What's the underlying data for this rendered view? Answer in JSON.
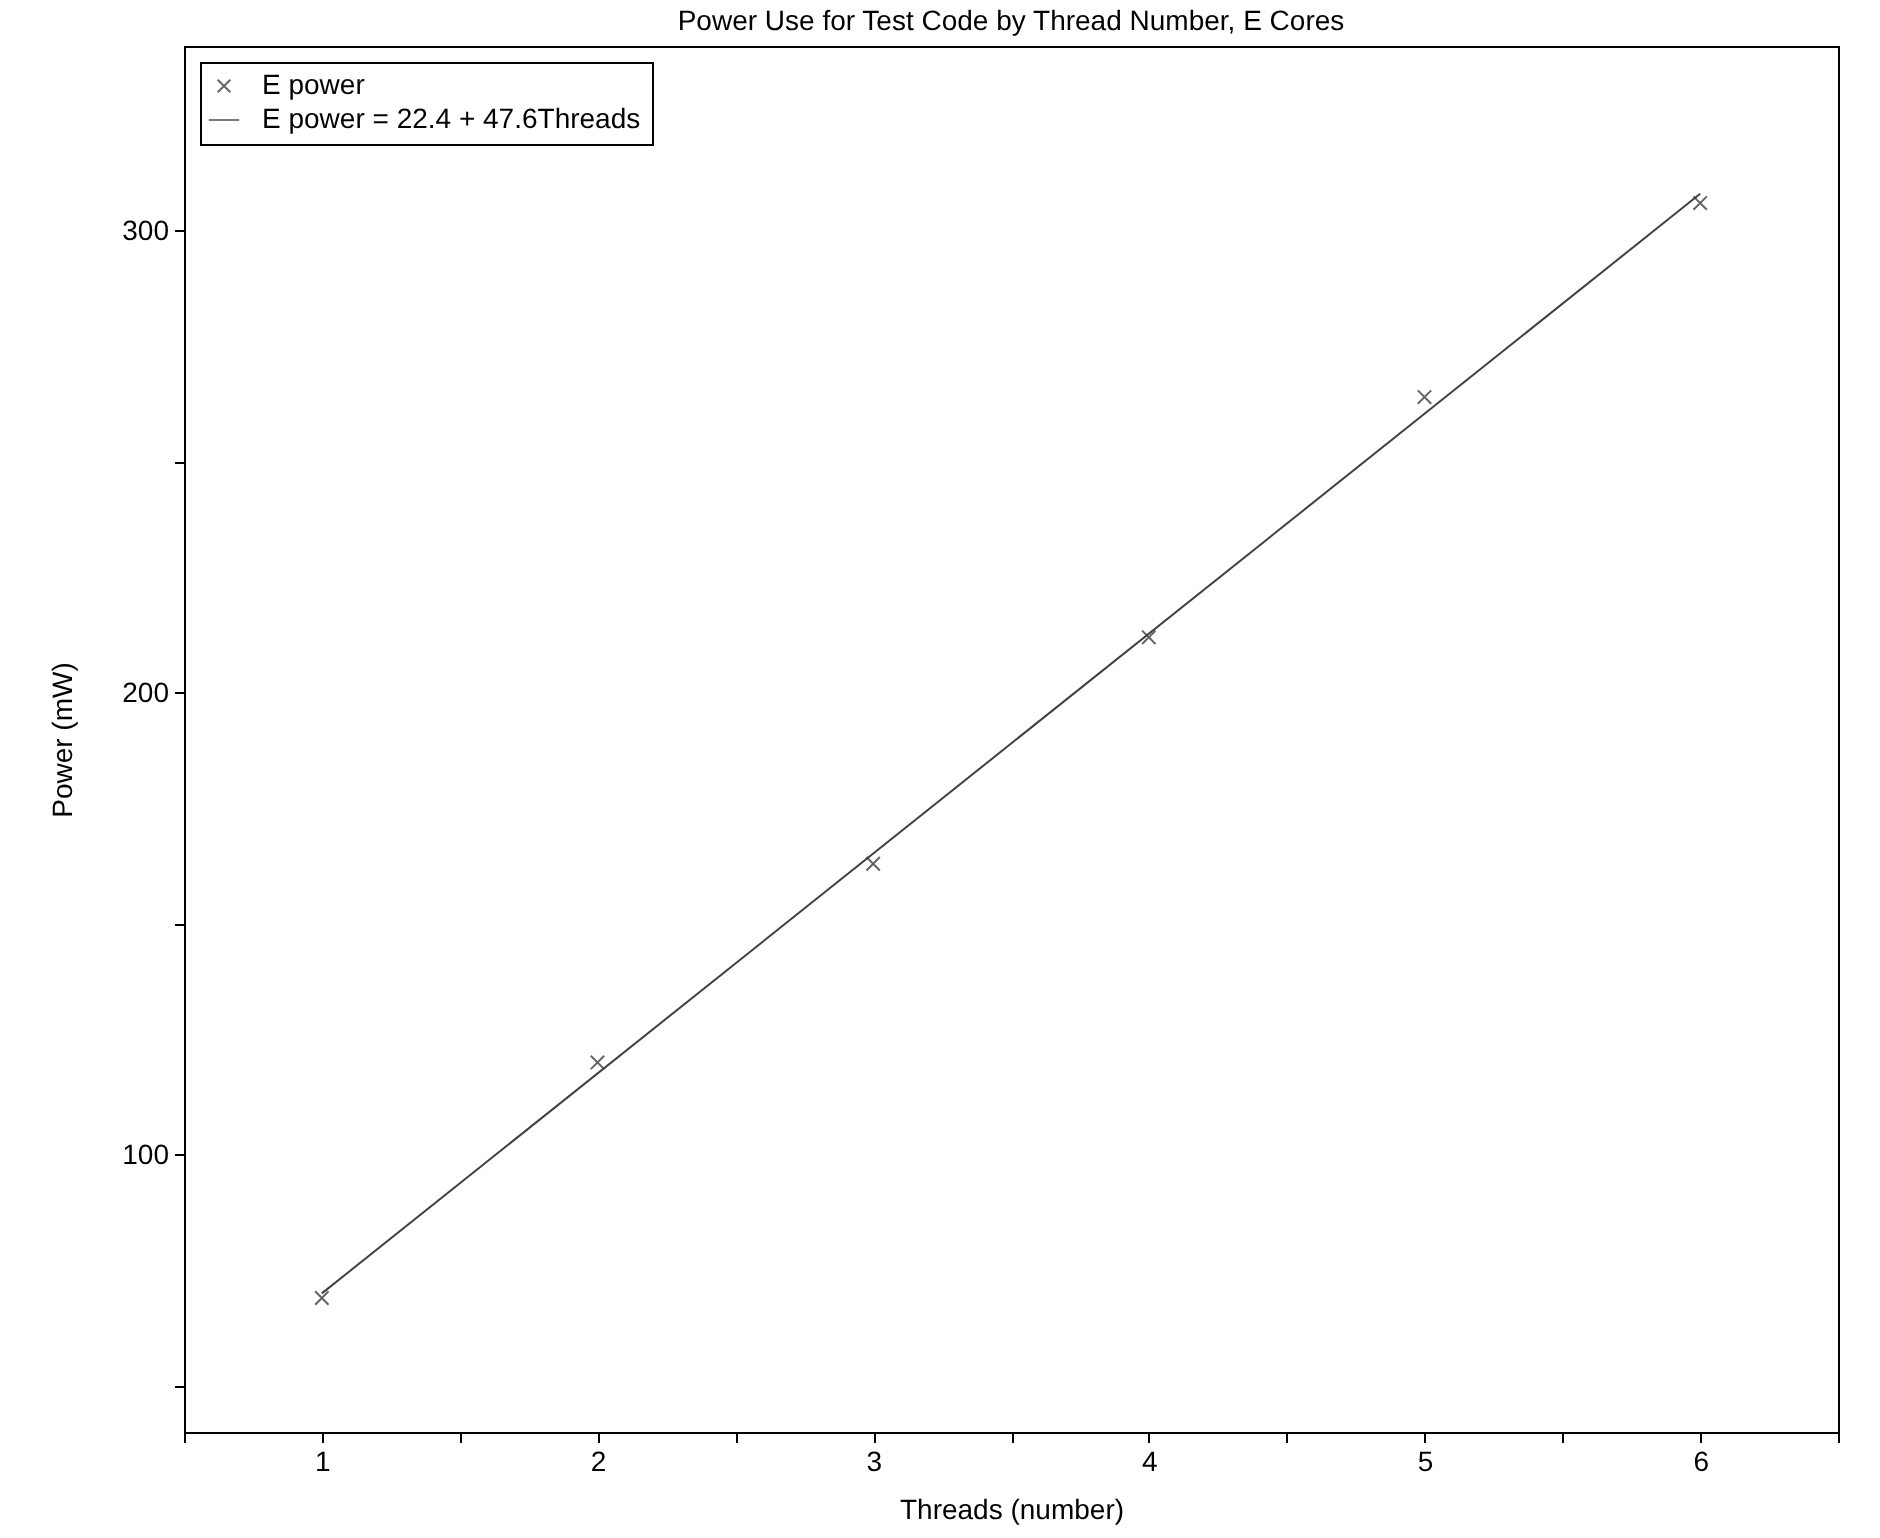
{
  "chart_data": {
    "type": "scatter",
    "title": "Power Use for Test Code by Thread Number, E Cores",
    "xlabel": "Threads (number)",
    "ylabel": "Power (mW)",
    "x": [
      1,
      2,
      3,
      4,
      5,
      6
    ],
    "series": [
      {
        "name": "E power",
        "color": "#222222",
        "marker": "cross",
        "values": [
          69,
          120,
          163,
          212,
          264,
          306
        ]
      },
      {
        "name": "E power = 22.4 + 47.6Threads",
        "type": "line",
        "color": "#404040",
        "line_style": "solid",
        "x": [
          1,
          6
        ],
        "values": [
          70,
          308
        ]
      }
    ],
    "xlim": [
      0.5,
      6.5
    ],
    "ylim": [
      40,
      340
    ],
    "xticks": [
      {
        "value": 0.5,
        "label": null
      },
      1,
      {
        "value": 1.5,
        "label": null
      },
      2,
      {
        "value": 2.5,
        "label": null
      },
      3,
      {
        "value": 3.5,
        "label": null
      },
      4,
      {
        "value": 4.5,
        "label": null
      },
      5,
      {
        "value": 5.5,
        "label": null
      },
      6,
      {
        "value": 6.5,
        "label": null
      }
    ],
    "yticks": [
      {
        "value": 50,
        "label": null
      },
      100,
      {
        "value": 150,
        "label": null
      },
      200,
      {
        "value": 250,
        "label": null
      },
      300
    ],
    "grid": false,
    "legend": "top left"
  }
}
